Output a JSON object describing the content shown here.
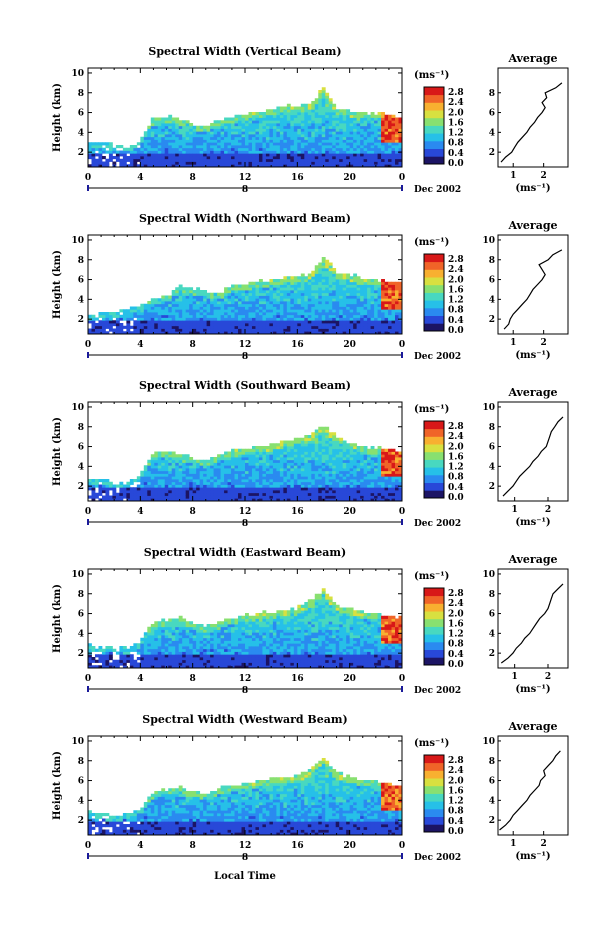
{
  "figure": {
    "xlabel": "Local Time",
    "colorbar_unit": "(ms⁻¹)",
    "colorbar_ticks": [
      "2.8",
      "2.4",
      "2.0",
      "1.6",
      "1.2",
      "0.8",
      "0.4",
      "0.0"
    ],
    "colormap": [
      "#1c1464",
      "#2848d8",
      "#2a8af0",
      "#26c0e8",
      "#48d8c0",
      "#88e070",
      "#d8e040",
      "#f8b030",
      "#f06428",
      "#d81818"
    ],
    "timeline_day": "8",
    "timeline_date": "Dec 2002",
    "average_title": "Average",
    "average_xlabel": "(ms⁻¹)"
  },
  "chart_data": [
    {
      "type": "heatmap",
      "title": "Spectral Width (Vertical Beam)",
      "ylabel": "Height (km)",
      "xticks": [
        "0",
        "4",
        "8",
        "12",
        "16",
        "20",
        "0"
      ],
      "yticks": [
        "10",
        "8",
        "6",
        "4",
        "2"
      ],
      "xlim": [
        0,
        24
      ],
      "ylim": [
        0.5,
        10.5
      ],
      "colorbar_range": [
        0.0,
        3.0
      ],
      "echo_top_km": [
        3.0,
        3.0,
        2.8,
        2.6,
        3.2,
        5.5,
        5.6,
        5.4,
        4.8,
        4.7,
        5.2,
        5.6,
        5.8,
        6.0,
        6.3,
        6.6,
        6.8,
        6.9,
        8.6,
        6.6,
        6.2,
        6.0,
        5.9,
        5.8,
        5.6
      ],
      "average_profile": {
        "xticks": [
          "1",
          "2"
        ],
        "yticks": [
          "8",
          "6",
          "4",
          "2"
        ],
        "xlim": [
          0.5,
          2.8
        ],
        "ylim": [
          0.5,
          10.5
        ],
        "height_km": [
          1,
          1.5,
          2,
          2.5,
          3,
          3.5,
          4,
          4.5,
          5,
          5.5,
          6,
          6.5,
          7,
          7.5,
          8,
          8.5,
          9
        ],
        "width_ms": [
          0.6,
          0.75,
          0.95,
          1.05,
          1.15,
          1.3,
          1.45,
          1.55,
          1.7,
          1.8,
          1.95,
          2.05,
          1.95,
          2.1,
          2.05,
          2.4,
          2.6
        ]
      }
    },
    {
      "type": "heatmap",
      "title": "Spectral Width (Northward Beam)",
      "ylabel": "Height (km)",
      "xticks": [
        "0",
        "4",
        "8",
        "12",
        "16",
        "20",
        "0"
      ],
      "yticks": [
        "10",
        "8",
        "6",
        "4",
        "2"
      ],
      "xlim": [
        0,
        24
      ],
      "ylim": [
        0.5,
        10.5
      ],
      "colorbar_range": [
        0.0,
        3.0
      ],
      "echo_top_km": [
        2.6,
        2.6,
        2.8,
        3.0,
        3.4,
        4.0,
        4.3,
        5.4,
        5.2,
        4.8,
        4.5,
        5.4,
        5.6,
        5.8,
        6.0,
        6.2,
        6.4,
        6.6,
        8.3,
        6.8,
        6.5,
        6.2,
        6.0,
        5.8,
        5.6
      ],
      "average_profile": {
        "xticks": [
          "1",
          "2"
        ],
        "yticks": [
          "10",
          "8",
          "6",
          "4",
          "2"
        ],
        "xlim": [
          0.5,
          2.8
        ],
        "ylim": [
          0.5,
          10.5
        ],
        "height_km": [
          1,
          1.5,
          2,
          2.5,
          3,
          3.5,
          4,
          4.5,
          5,
          5.5,
          6,
          6.5,
          7,
          7.5,
          8,
          8.5,
          9
        ],
        "width_ms": [
          0.7,
          0.85,
          0.9,
          1.0,
          1.15,
          1.3,
          1.45,
          1.55,
          1.65,
          1.8,
          1.95,
          2.05,
          1.95,
          1.85,
          2.15,
          2.3,
          2.6
        ]
      }
    },
    {
      "type": "heatmap",
      "title": "Spectral Width (Southward Beam)",
      "ylabel": "Height (km)",
      "xticks": [
        "0",
        "4",
        "8",
        "12",
        "16",
        "20",
        "0"
      ],
      "yticks": [
        "10",
        "8",
        "6",
        "4",
        "2"
      ],
      "xlim": [
        0,
        24
      ],
      "ylim": [
        0.5,
        10.5
      ],
      "colorbar_range": [
        0.0,
        3.0
      ],
      "echo_top_km": [
        2.8,
        2.8,
        2.4,
        2.4,
        3.2,
        5.4,
        5.5,
        5.4,
        4.8,
        4.6,
        5.2,
        5.6,
        5.8,
        6.0,
        6.2,
        6.5,
        6.8,
        7.2,
        8.2,
        7.0,
        6.4,
        6.1,
        5.9,
        5.7,
        5.5
      ],
      "average_profile": {
        "xticks": [
          "1",
          "2"
        ],
        "yticks": [
          "10",
          "8",
          "6",
          "4",
          "2"
        ],
        "xlim": [
          0.5,
          2.6
        ],
        "ylim": [
          0.5,
          10.5
        ],
        "height_km": [
          1,
          1.5,
          2,
          2.5,
          3,
          3.5,
          4,
          4.5,
          5,
          5.5,
          6,
          6.5,
          7,
          7.5,
          8,
          8.5,
          9
        ],
        "width_ms": [
          0.65,
          0.8,
          0.95,
          1.05,
          1.15,
          1.3,
          1.45,
          1.55,
          1.7,
          1.8,
          1.95,
          2.0,
          2.05,
          2.1,
          2.2,
          2.3,
          2.45
        ]
      }
    },
    {
      "type": "heatmap",
      "title": "Spectral Width (Eastward Beam)",
      "ylabel": "Height (km)",
      "xticks": [
        "0",
        "4",
        "8",
        "12",
        "16",
        "20",
        "0"
      ],
      "yticks": [
        "10",
        "8",
        "6",
        "4",
        "2"
      ],
      "xlim": [
        0,
        24
      ],
      "ylim": [
        0.5,
        10.5
      ],
      "colorbar_range": [
        0.0,
        3.0
      ],
      "echo_top_km": [
        2.8,
        2.8,
        2.6,
        2.6,
        3.2,
        5.2,
        5.4,
        5.6,
        5.0,
        4.8,
        5.2,
        5.5,
        5.8,
        6.0,
        6.2,
        6.4,
        6.6,
        7.4,
        8.5,
        7.0,
        6.5,
        6.2,
        6.0,
        5.8,
        5.6
      ],
      "average_profile": {
        "xticks": [
          "1",
          "2"
        ],
        "yticks": [
          "10",
          "8",
          "6",
          "4",
          "2"
        ],
        "xlim": [
          0.5,
          2.6
        ],
        "ylim": [
          0.5,
          10.5
        ],
        "height_km": [
          1,
          1.5,
          2,
          2.5,
          3,
          3.5,
          4,
          4.5,
          5,
          5.5,
          6,
          6.5,
          7,
          7.5,
          8,
          8.5,
          9
        ],
        "width_ms": [
          0.6,
          0.8,
          0.95,
          1.05,
          1.2,
          1.3,
          1.45,
          1.55,
          1.65,
          1.75,
          1.9,
          2.0,
          2.05,
          2.1,
          2.15,
          2.3,
          2.45
        ]
      }
    },
    {
      "type": "heatmap",
      "title": "Spectral Width (Westward Beam)",
      "ylabel": "Height (km)",
      "xticks": [
        "0",
        "4",
        "8",
        "12",
        "16",
        "20",
        "0"
      ],
      "yticks": [
        "10",
        "8",
        "6",
        "4",
        "2"
      ],
      "xlim": [
        0,
        24
      ],
      "ylim": [
        0.5,
        10.5
      ],
      "colorbar_range": [
        0.0,
        3.0
      ],
      "echo_top_km": [
        2.8,
        2.8,
        2.4,
        2.6,
        3.2,
        5.0,
        5.2,
        5.4,
        4.8,
        4.6,
        5.2,
        5.5,
        5.7,
        6.0,
        6.2,
        6.4,
        6.6,
        7.2,
        8.2,
        6.8,
        6.4,
        6.1,
        5.9,
        5.7,
        5.5
      ],
      "average_profile": {
        "xticks": [
          "1",
          "2"
        ],
        "yticks": [
          "10",
          "8",
          "6",
          "4",
          "2"
        ],
        "xlim": [
          0.5,
          2.8
        ],
        "ylim": [
          0.5,
          10.5
        ],
        "height_km": [
          1,
          1.5,
          2,
          2.5,
          3,
          3.5,
          4,
          4.5,
          5,
          5.5,
          6,
          6.5,
          7,
          7.5,
          8,
          8.5,
          9
        ],
        "width_ms": [
          0.55,
          0.75,
          0.9,
          1.0,
          1.15,
          1.3,
          1.45,
          1.55,
          1.7,
          1.85,
          1.9,
          2.05,
          2.0,
          2.15,
          2.3,
          2.4,
          2.55
        ]
      }
    }
  ]
}
